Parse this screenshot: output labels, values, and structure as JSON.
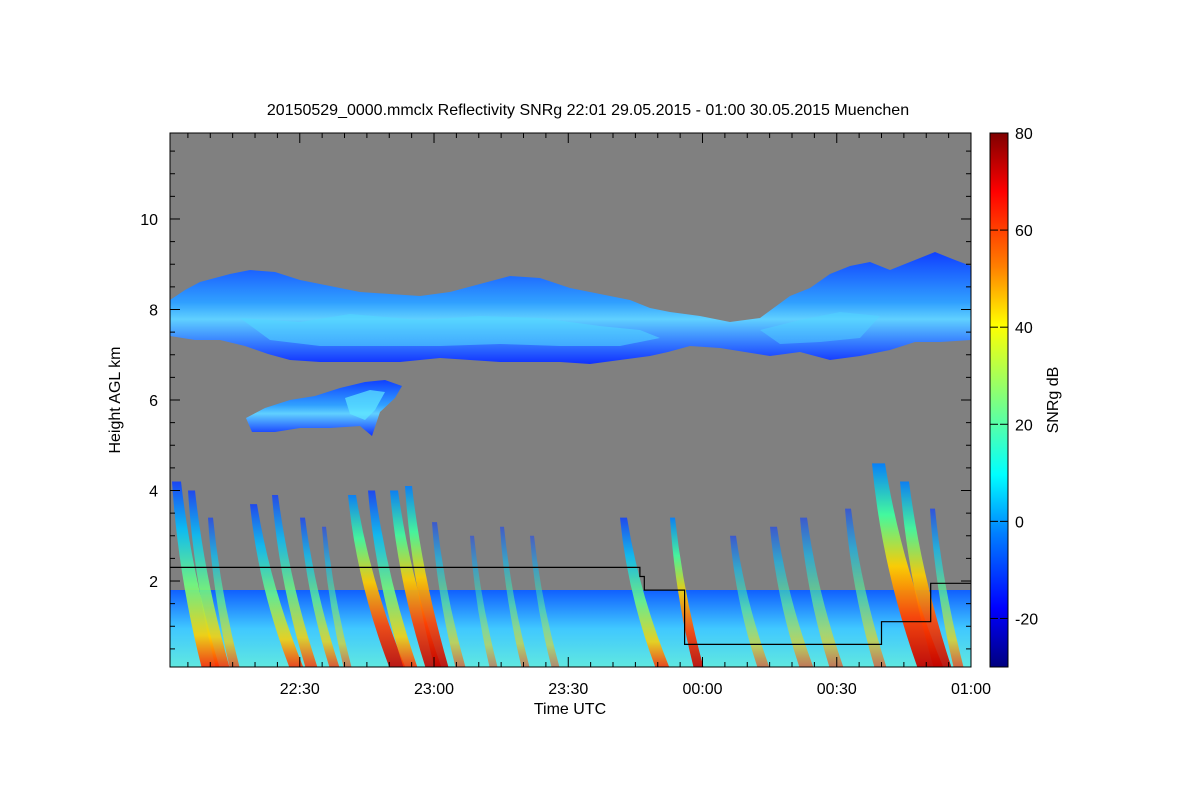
{
  "chart_data": {
    "type": "heatmap",
    "title": "20150529_0000.mmclx Reflectivity SNRg   22:01 29.05.2015 - 01:00 30.05.2015 Muenchen",
    "xlabel": "Time UTC",
    "ylabel": "Height AGL km",
    "colorbar_label": "SNRg dB",
    "x_start": "22:01",
    "x_end": "01:00",
    "xlim_minutes_from_2200": [
      1,
      180
    ],
    "ylim": [
      0.1,
      11.9
    ],
    "x_ticks": [
      {
        "label": "22:30",
        "minute": 30
      },
      {
        "label": "23:00",
        "minute": 60
      },
      {
        "label": "23:30",
        "minute": 90
      },
      {
        "label": "00:00",
        "minute": 120
      },
      {
        "label": "00:30",
        "minute": 150
      },
      {
        "label": "01:00",
        "minute": 180
      }
    ],
    "y_ticks": [
      {
        "label": "2",
        "value": 2
      },
      {
        "label": "4",
        "value": 4
      },
      {
        "label": "6",
        "value": 6
      },
      {
        "label": "8",
        "value": 8
      },
      {
        "label": "10",
        "value": 10
      }
    ],
    "colorbar_range": [
      -30,
      80
    ],
    "colorbar_ticks": [
      {
        "label": "-20",
        "value": -20
      },
      {
        "label": "0",
        "value": 0
      },
      {
        "label": "20",
        "value": 20
      },
      {
        "label": "40",
        "value": 40
      },
      {
        "label": "60",
        "value": 60
      },
      {
        "label": "80",
        "value": 80
      }
    ],
    "background_color": "#808080",
    "colormap": "jet",
    "boundary_line": [
      {
        "minute": 1,
        "height": 2.3
      },
      {
        "minute": 106,
        "height": 2.3
      },
      {
        "minute": 106,
        "height": 2.1
      },
      {
        "minute": 107,
        "height": 2.1
      },
      {
        "minute": 107,
        "height": 1.8
      },
      {
        "minute": 116,
        "height": 1.8
      },
      {
        "minute": 116,
        "height": 0.6
      },
      {
        "minute": 160,
        "height": 0.6
      },
      {
        "minute": 160,
        "height": 1.1
      },
      {
        "minute": 171,
        "height": 1.1
      },
      {
        "minute": 171,
        "height": 1.95
      },
      {
        "minute": 182,
        "height": 1.95
      }
    ]
  }
}
